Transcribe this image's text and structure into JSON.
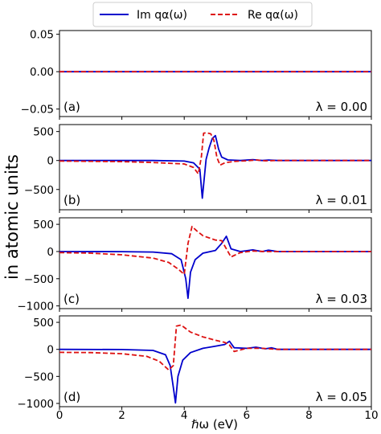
{
  "chart_data": {
    "type": "line",
    "shared_ylabel": "in atomic units",
    "xlabel": "ℏω (eV)",
    "xlim": [
      0,
      10
    ],
    "xticks": [
      0,
      2,
      4,
      6,
      8,
      10
    ],
    "legend": {
      "placement": "top-center",
      "entries": [
        {
          "label": "Im qα(ω)",
          "color": "#0000cc",
          "style": "solid"
        },
        {
          "label": "Re qα(ω)",
          "color": "#dd1111",
          "style": "dashed"
        }
      ]
    },
    "panels": [
      {
        "tag": "(a)",
        "lambda_label": "λ = 0.00",
        "ylim": [
          -0.06,
          0.055
        ],
        "yticks": [
          0.05,
          0.0,
          -0.05
        ],
        "ytick_labels": [
          "0.05",
          "0.00",
          "−0.05"
        ],
        "series": [
          {
            "name": "Im qα(ω)",
            "x": [
              0,
              10
            ],
            "y": [
              0,
              0
            ]
          },
          {
            "name": "Re qα(ω)",
            "x": [
              0,
              10
            ],
            "y": [
              0,
              0
            ]
          }
        ]
      },
      {
        "tag": "(b)",
        "lambda_label": "λ = 0.01",
        "ylim": [
          -850,
          620
        ],
        "yticks": [
          500,
          0,
          -500
        ],
        "ytick_labels": [
          "500",
          "0",
          "−500"
        ],
        "series": [
          {
            "name": "Im qα(ω)",
            "x": [
              0,
              2,
              3,
              4,
              4.3,
              4.5,
              4.58,
              4.62,
              4.7,
              4.8,
              4.9,
              5.0,
              5.1,
              5.2,
              5.4,
              5.8,
              6.2,
              6.3,
              6.5,
              6.7,
              7,
              8,
              10
            ],
            "y": [
              0,
              0,
              0,
              -10,
              -40,
              -150,
              -650,
              -420,
              20,
              220,
              380,
              430,
              200,
              60,
              10,
              0,
              15,
              10,
              0,
              8,
              0,
              0,
              0
            ]
          },
          {
            "name": "Re qα(ω)",
            "x": [
              0,
              2,
              3,
              4,
              4.3,
              4.45,
              4.55,
              4.62,
              4.7,
              4.85,
              4.95,
              5.05,
              5.15,
              5.3,
              5.6,
              6,
              6.3,
              6.6,
              7,
              8,
              10
            ],
            "y": [
              -10,
              -20,
              -35,
              -60,
              -120,
              -230,
              60,
              470,
              480,
              460,
              350,
              50,
              -80,
              -40,
              -15,
              -5,
              10,
              -5,
              0,
              0,
              0
            ]
          }
        ]
      },
      {
        "tag": "(c)",
        "lambda_label": "λ = 0.03",
        "ylim": [
          -1050,
          620
        ],
        "yticks": [
          500,
          0,
          -500,
          -1000
        ],
        "ytick_labels": [
          "500",
          "0",
          "−500",
          "−1000"
        ],
        "series": [
          {
            "name": "Im qα(ω)",
            "x": [
              0,
              2,
              3,
              3.6,
              3.9,
              4.05,
              4.12,
              4.2,
              4.35,
              4.6,
              5.0,
              5.2,
              5.35,
              5.5,
              5.8,
              6.2,
              6.3,
              6.5,
              6.7,
              7,
              8,
              10
            ],
            "y": [
              0,
              -2,
              -10,
              -40,
              -150,
              -500,
              -860,
              -380,
              -150,
              -30,
              20,
              150,
              280,
              50,
              0,
              30,
              20,
              0,
              25,
              0,
              0,
              0
            ]
          },
          {
            "name": "Re qα(ω)",
            "x": [
              0,
              1,
              2,
              3,
              3.5,
              3.8,
              4.0,
              4.12,
              4.25,
              4.4,
              4.6,
              5.0,
              5.2,
              5.35,
              5.5,
              5.8,
              6.2,
              6.6,
              7,
              8,
              10
            ],
            "y": [
              -20,
              -30,
              -60,
              -120,
              -200,
              -320,
              -420,
              150,
              460,
              380,
              290,
              210,
              200,
              50,
              -100,
              -20,
              10,
              0,
              0,
              0,
              0
            ]
          }
        ]
      },
      {
        "tag": "(d)",
        "lambda_label": "λ = 0.05",
        "ylim": [
          -1060,
          620
        ],
        "yticks": [
          500,
          0,
          -500,
          -1000
        ],
        "ytick_labels": [
          "500",
          "0",
          "−500",
          "−1000"
        ],
        "series": [
          {
            "name": "Im qα(ω)",
            "x": [
              0,
              2,
              3,
              3.4,
              3.55,
              3.65,
              3.72,
              3.8,
              3.95,
              4.2,
              4.6,
              5.0,
              5.3,
              5.45,
              5.6,
              6.0,
              6.3,
              6.6,
              6.8,
              7,
              8,
              10
            ],
            "y": [
              0,
              -3,
              -20,
              -100,
              -300,
              -700,
              -990,
              -500,
              -200,
              -60,
              20,
              60,
              90,
              150,
              30,
              20,
              40,
              10,
              30,
              0,
              0,
              0
            ]
          },
          {
            "name": "Re qα(ω)",
            "x": [
              0,
              1,
              2,
              2.8,
              3.2,
              3.5,
              3.65,
              3.75,
              3.9,
              4.2,
              4.6,
              5.0,
              5.3,
              5.45,
              5.6,
              6.0,
              6.5,
              7,
              8,
              10
            ],
            "y": [
              -55,
              -60,
              -80,
              -130,
              -220,
              -380,
              -300,
              430,
              450,
              320,
              230,
              170,
              130,
              80,
              -40,
              20,
              20,
              0,
              0,
              0
            ]
          }
        ]
      }
    ]
  }
}
